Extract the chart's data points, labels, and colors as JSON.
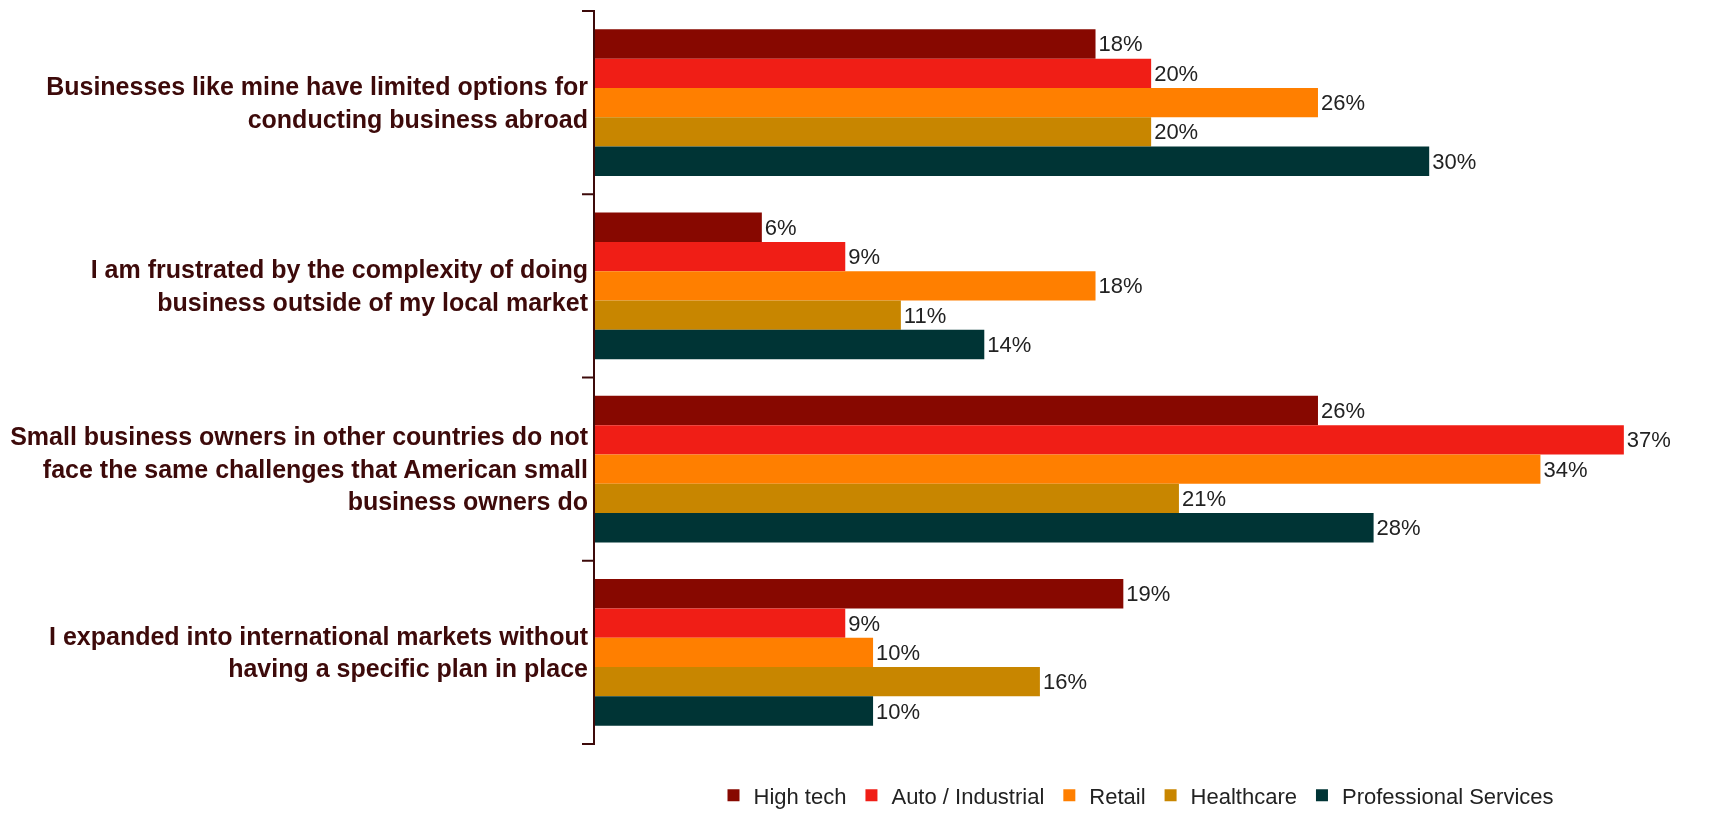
{
  "chart_data": {
    "type": "bar",
    "orientation": "horizontal",
    "categories": [
      "Businesses like mine have limited options for conducting business abroad",
      "I am frustrated by the complexity of doing business outside of my local market",
      "Small business owners in other countries do not face the same challenges that American small business owners do",
      "I expanded into international markets without having a specific plan in place"
    ],
    "series": [
      {
        "name": "High tech",
        "color": "#870800",
        "values": [
          18,
          6,
          26,
          19
        ],
        "value_labels": [
          "18%",
          "6%",
          "26%",
          "19%"
        ]
      },
      {
        "name": "Auto / Industrial",
        "color": "#f01e16",
        "values": [
          20,
          9,
          37,
          9
        ],
        "value_labels": [
          "20%",
          "9%",
          "37%",
          "9%"
        ]
      },
      {
        "name": "Retail",
        "color": "#ff7f00",
        "values": [
          26,
          18,
          34,
          10
        ],
        "value_labels": [
          "26%",
          "18%",
          "34%",
          "10%"
        ]
      },
      {
        "name": "Healthcare",
        "color": "#c88600",
        "values": [
          20,
          11,
          21,
          16
        ],
        "value_labels": [
          "20%",
          "11%",
          "21%",
          "16%"
        ]
      },
      {
        "name": "Professional Services",
        "color": "#003435",
        "values": [
          30,
          14,
          28,
          10
        ],
        "value_labels": [
          "30%",
          "14%",
          "28%",
          "10%"
        ]
      }
    ],
    "tick_labels": "y",
    "legend": "bottom"
  }
}
